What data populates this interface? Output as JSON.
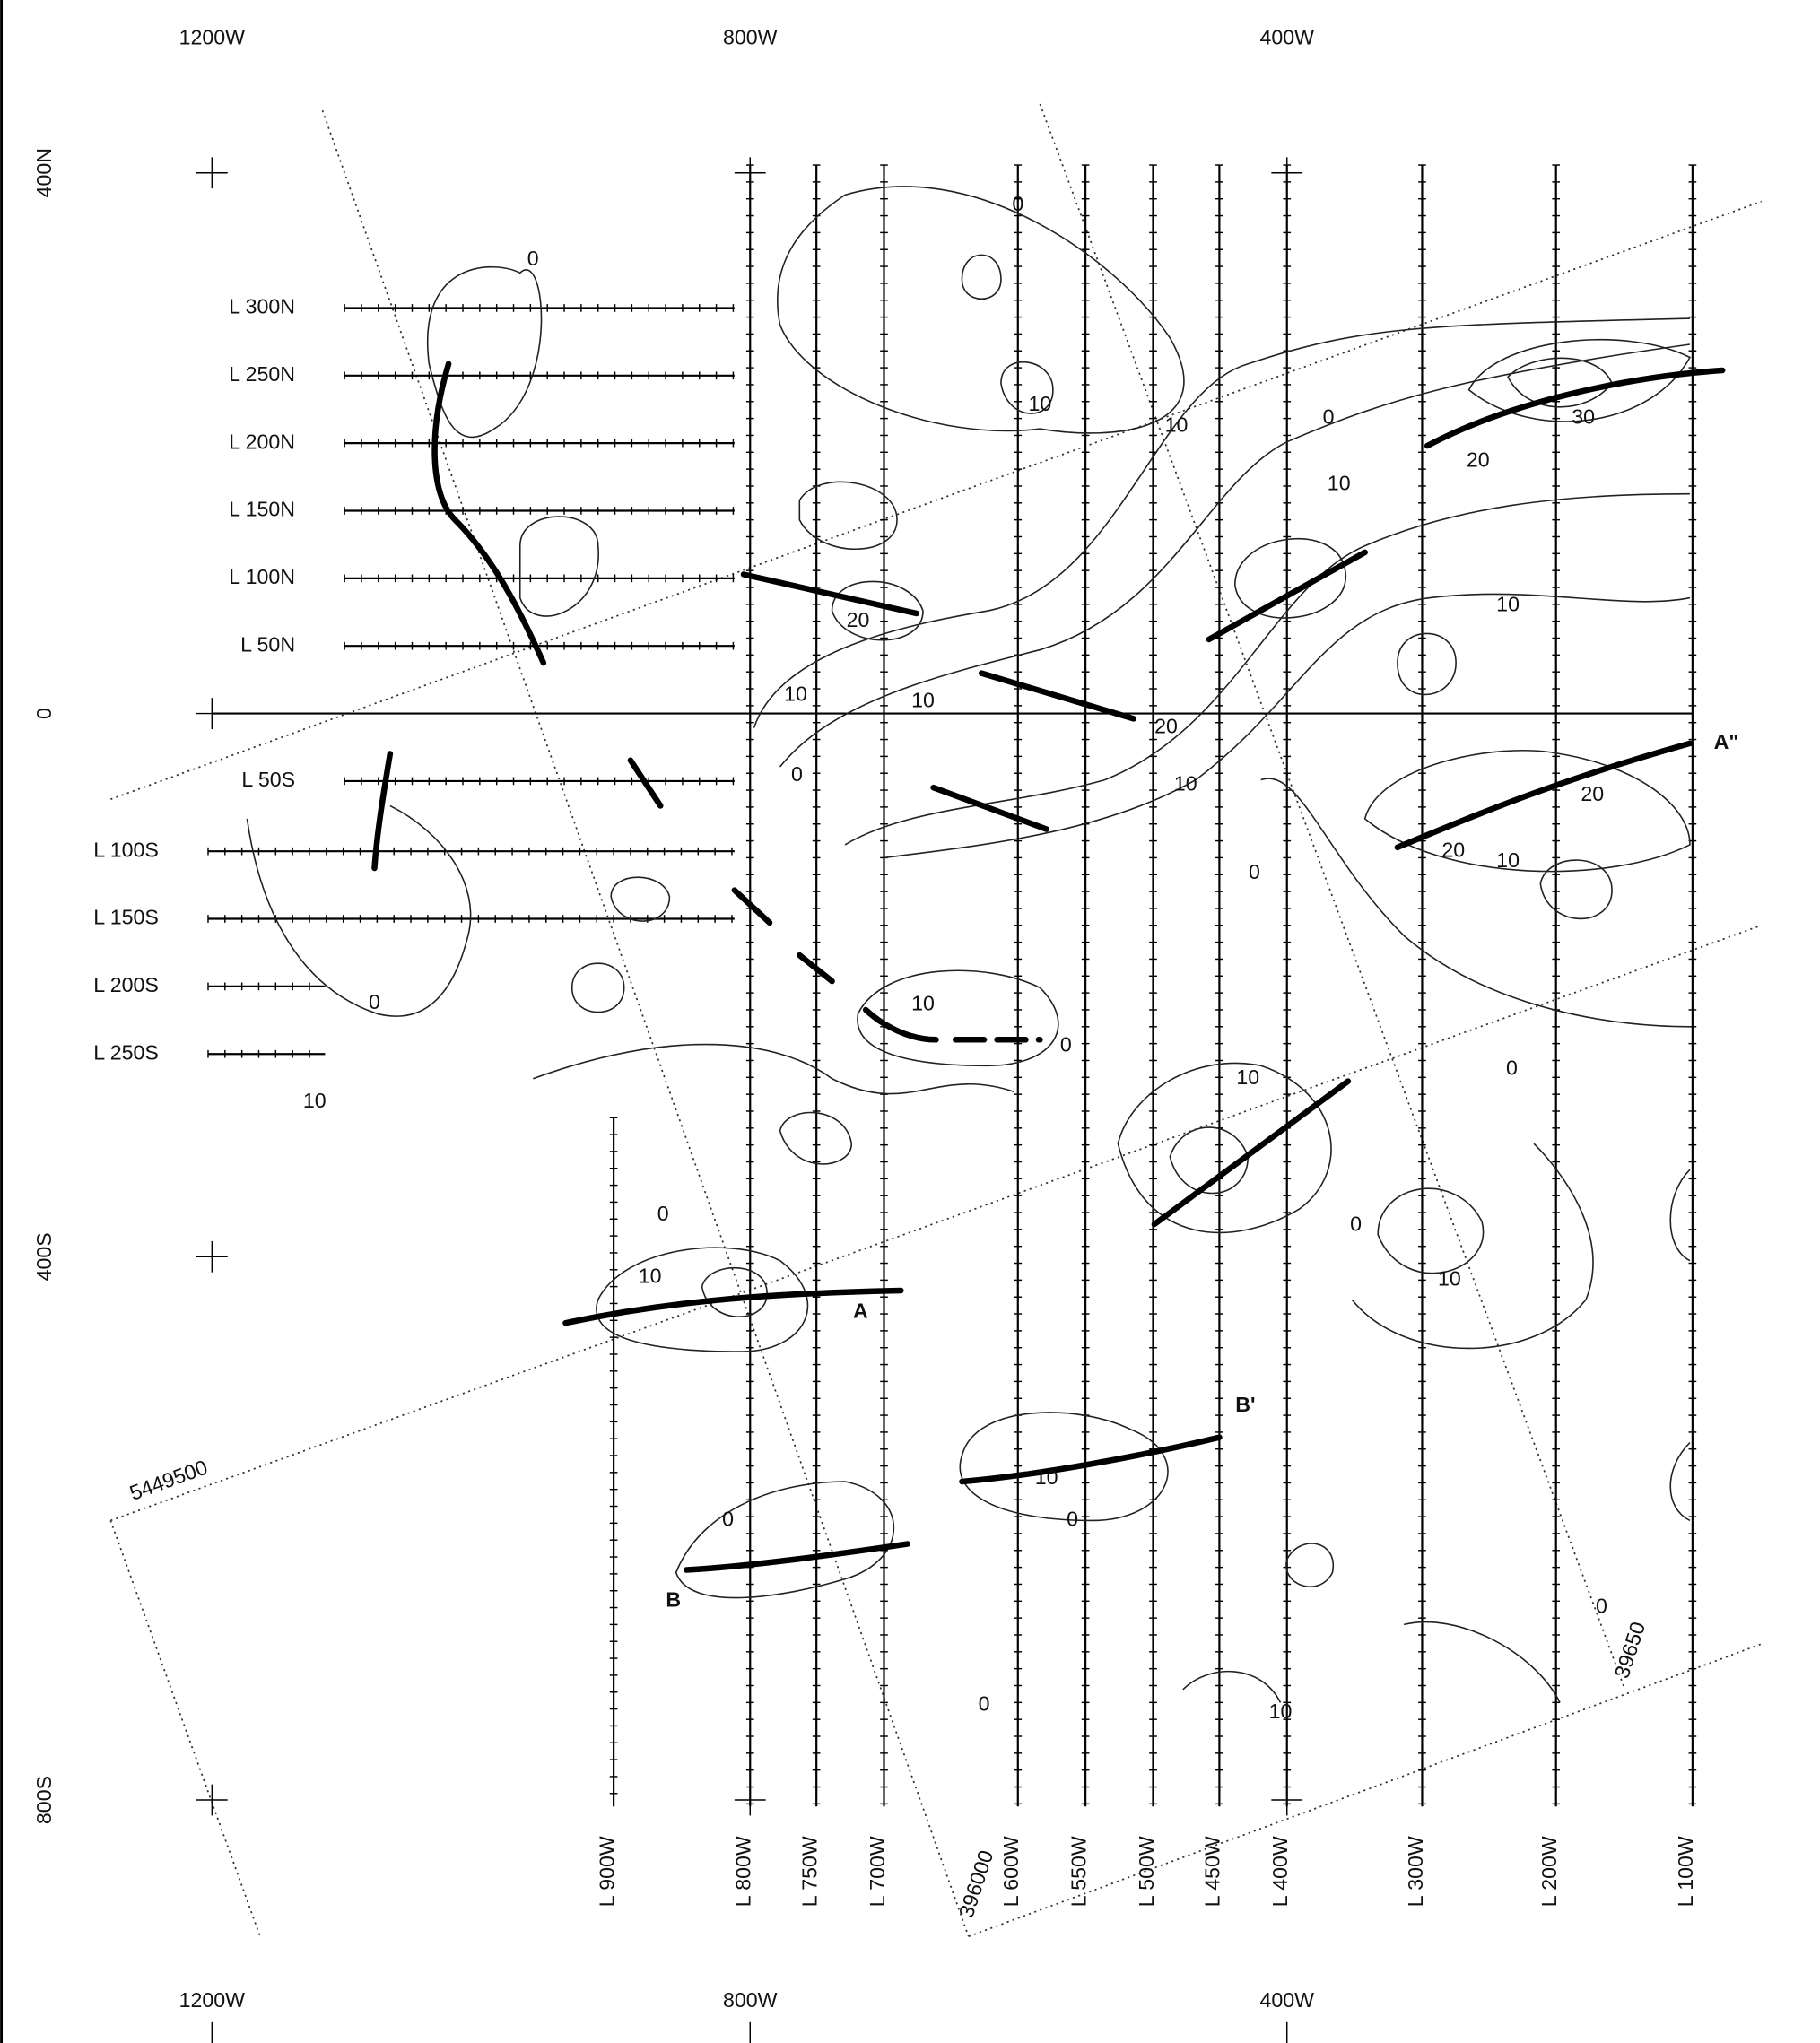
{
  "top_axis": [
    "1200W",
    "800W",
    "400W"
  ],
  "bottom_axis": [
    "1200W",
    "800W",
    "400W"
  ],
  "left_axis": [
    "400N",
    "0",
    "400S",
    "800S"
  ],
  "survey_lines_ns": [
    "L 300N",
    "L 250N",
    "L 200N",
    "L 150N",
    "L 100N",
    "L 50N",
    "L 50S",
    "L 100S",
    "L 150S",
    "L 200S",
    "L 250S"
  ],
  "survey_lines_ew": [
    "L 900W",
    "L 800W",
    "L 750W",
    "L 700W",
    "L 600W",
    "L 550W",
    "L 500W",
    "L 450W",
    "L 400W",
    "L 300W",
    "L 200W",
    "L 100W"
  ],
  "profile_labels": [
    "A",
    "A\"",
    "B",
    "B'"
  ],
  "grid_coordinates": [
    "5449500",
    "396000",
    "39650"
  ],
  "contour_labels": [
    "0",
    "0",
    "10",
    "10",
    "0",
    "10",
    "20",
    "30",
    "10",
    "20",
    "10",
    "10",
    "20",
    "10",
    "0",
    "20",
    "20",
    "10",
    "0",
    "10",
    "0",
    "0",
    "10",
    "0",
    "10",
    "10",
    "0",
    "10",
    "0",
    "0",
    "0",
    "0",
    "10",
    "10",
    "0"
  ]
}
